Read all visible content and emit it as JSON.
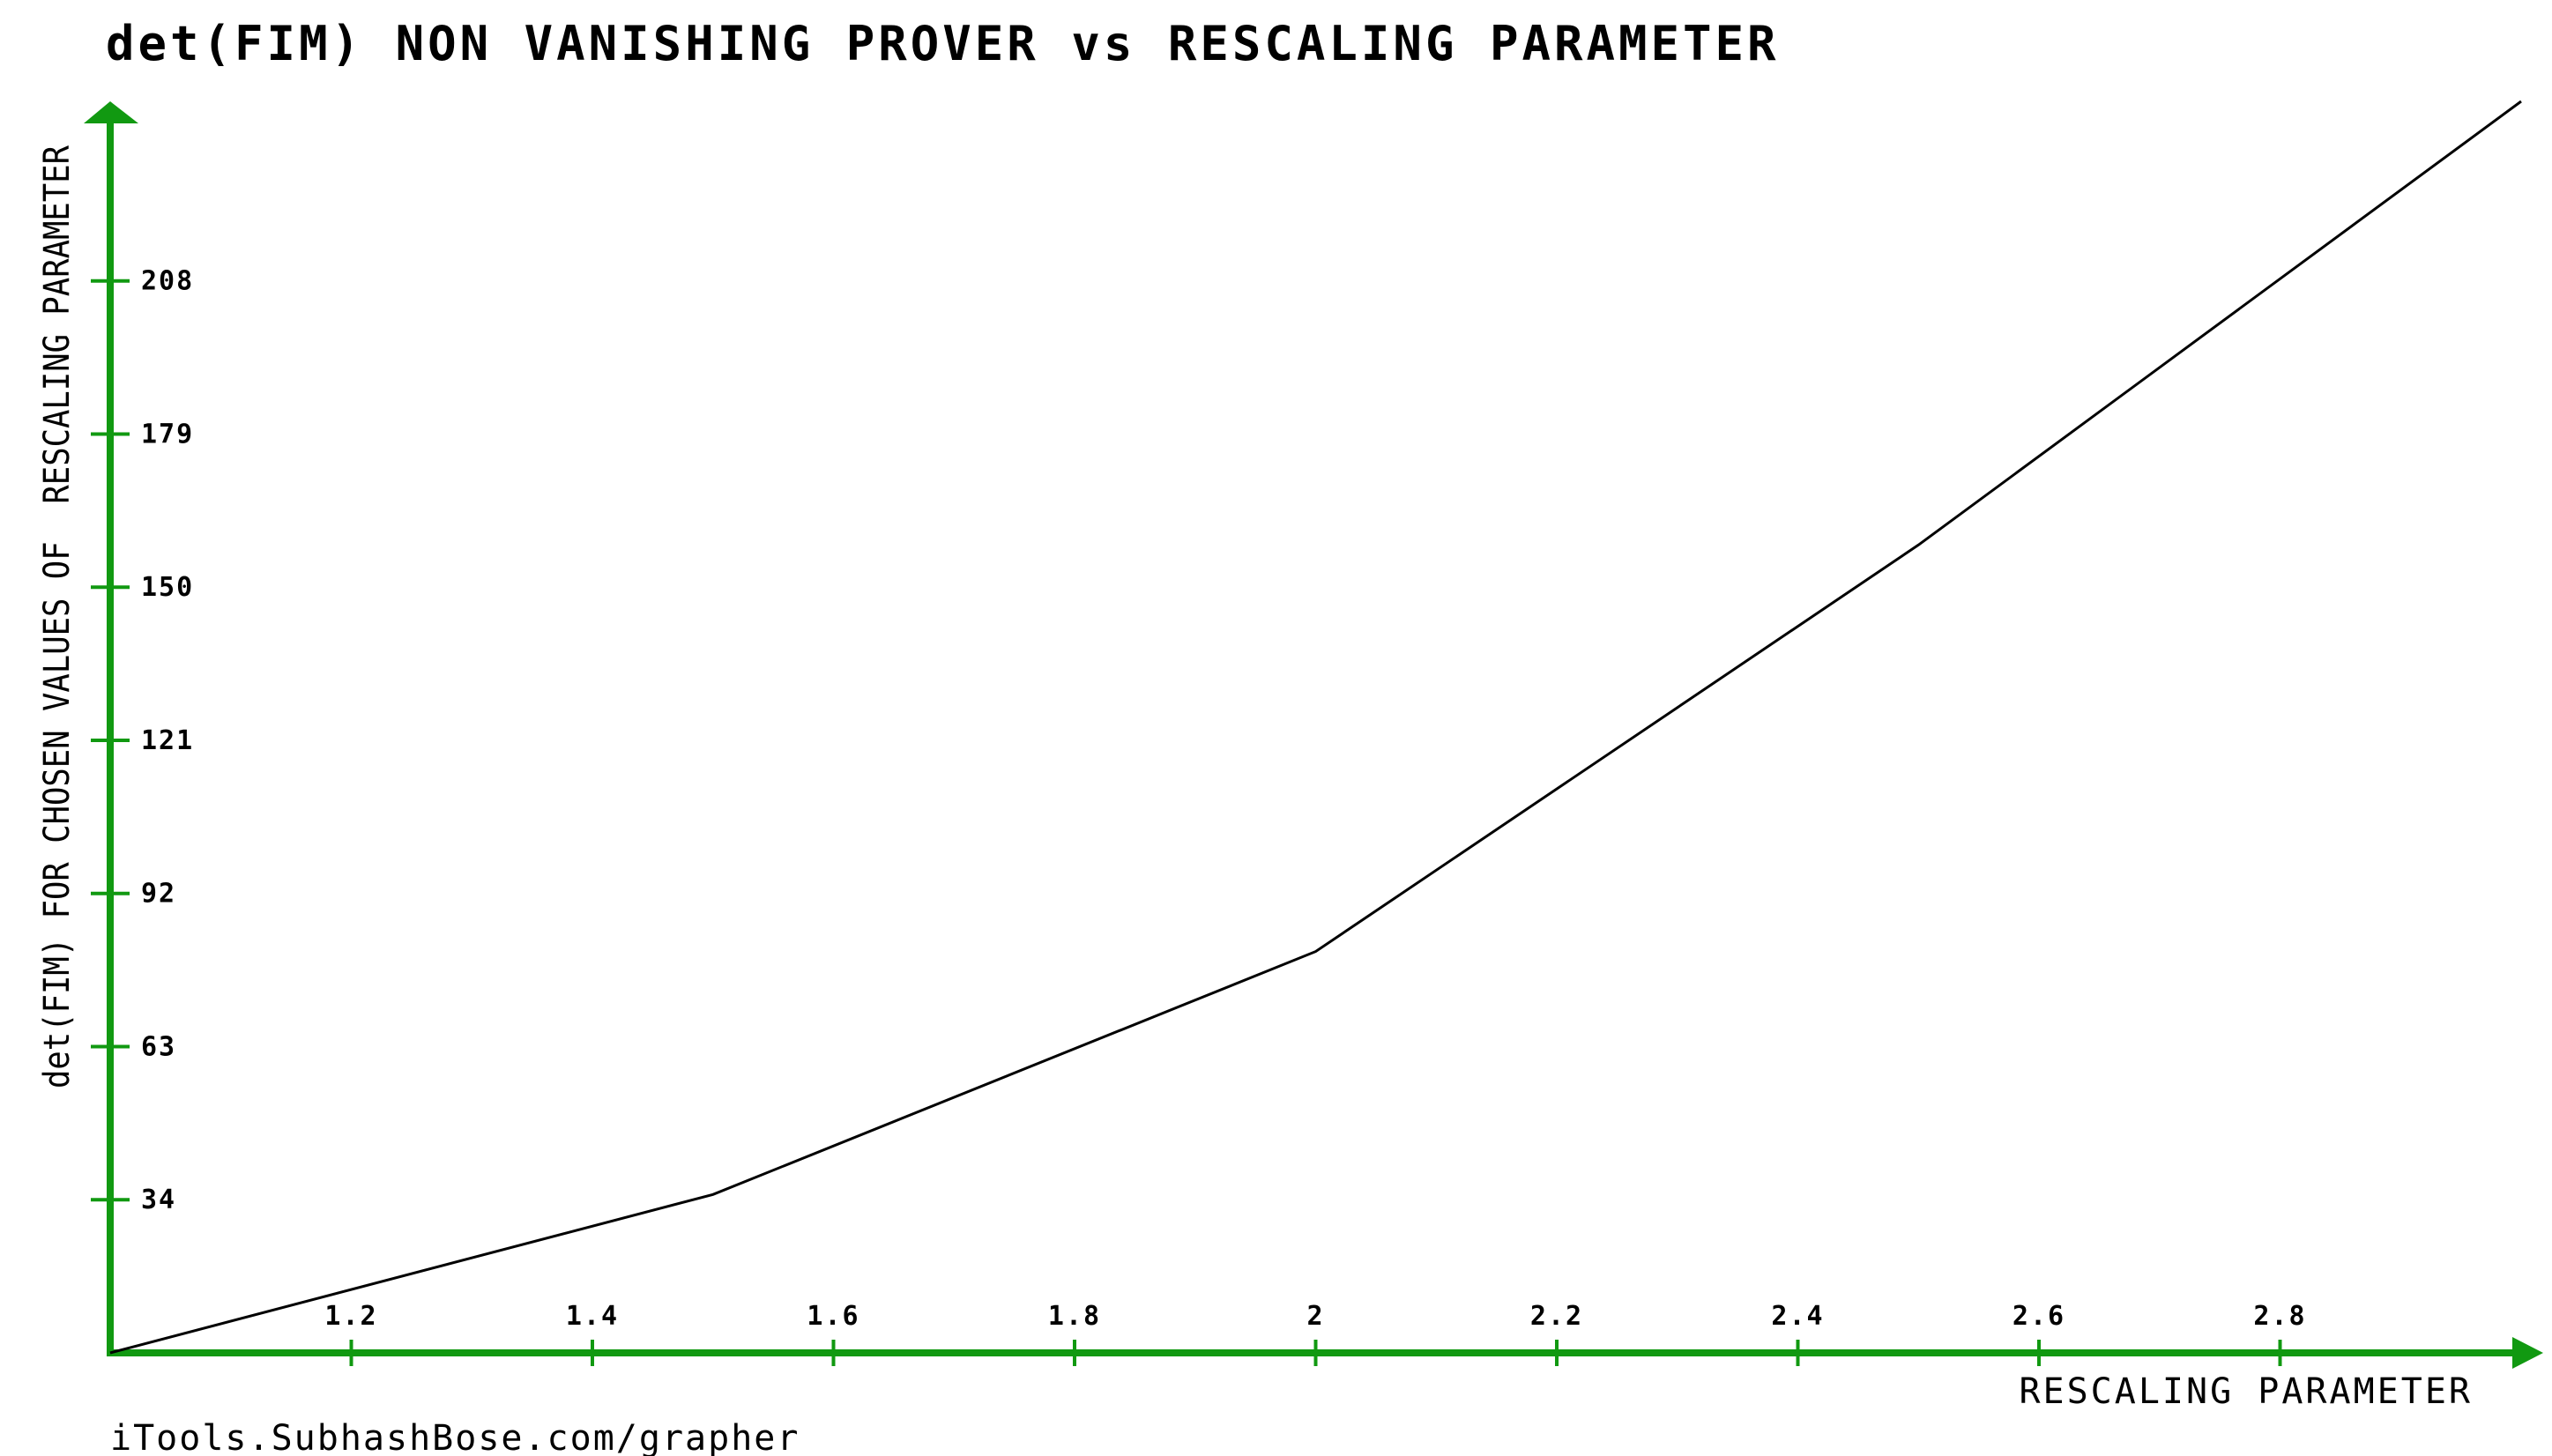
{
  "chart_data": {
    "type": "line",
    "title": "det(FIM) NON VANISHING PROVER vs RESCALING PARAMETER",
    "xlabel": "RESCALING PARAMETER",
    "ylabel": "det(FIM) FOR CHOSEN VALUES OF  RESCALING PARAMETER",
    "x_ticks": [
      "1.2",
      "1.4",
      "1.6",
      "1.8",
      "2",
      "2.2",
      "2.4",
      "2.6",
      "2.8"
    ],
    "y_ticks": [
      "34",
      "63",
      "92",
      "121",
      "150",
      "179",
      "208"
    ],
    "xlim": [
      1.0,
      3.0
    ],
    "ylim": [
      5,
      242
    ],
    "grid": false,
    "axis_color": "#119911",
    "line_color": "#000000",
    "series": [
      {
        "x": [
          1.0,
          1.5,
          2.0,
          2.5,
          3.0
        ],
        "y": [
          5,
          35,
          81,
          158,
          242
        ]
      }
    ]
  },
  "footer": "iTools.SubhashBose.com/grapher"
}
